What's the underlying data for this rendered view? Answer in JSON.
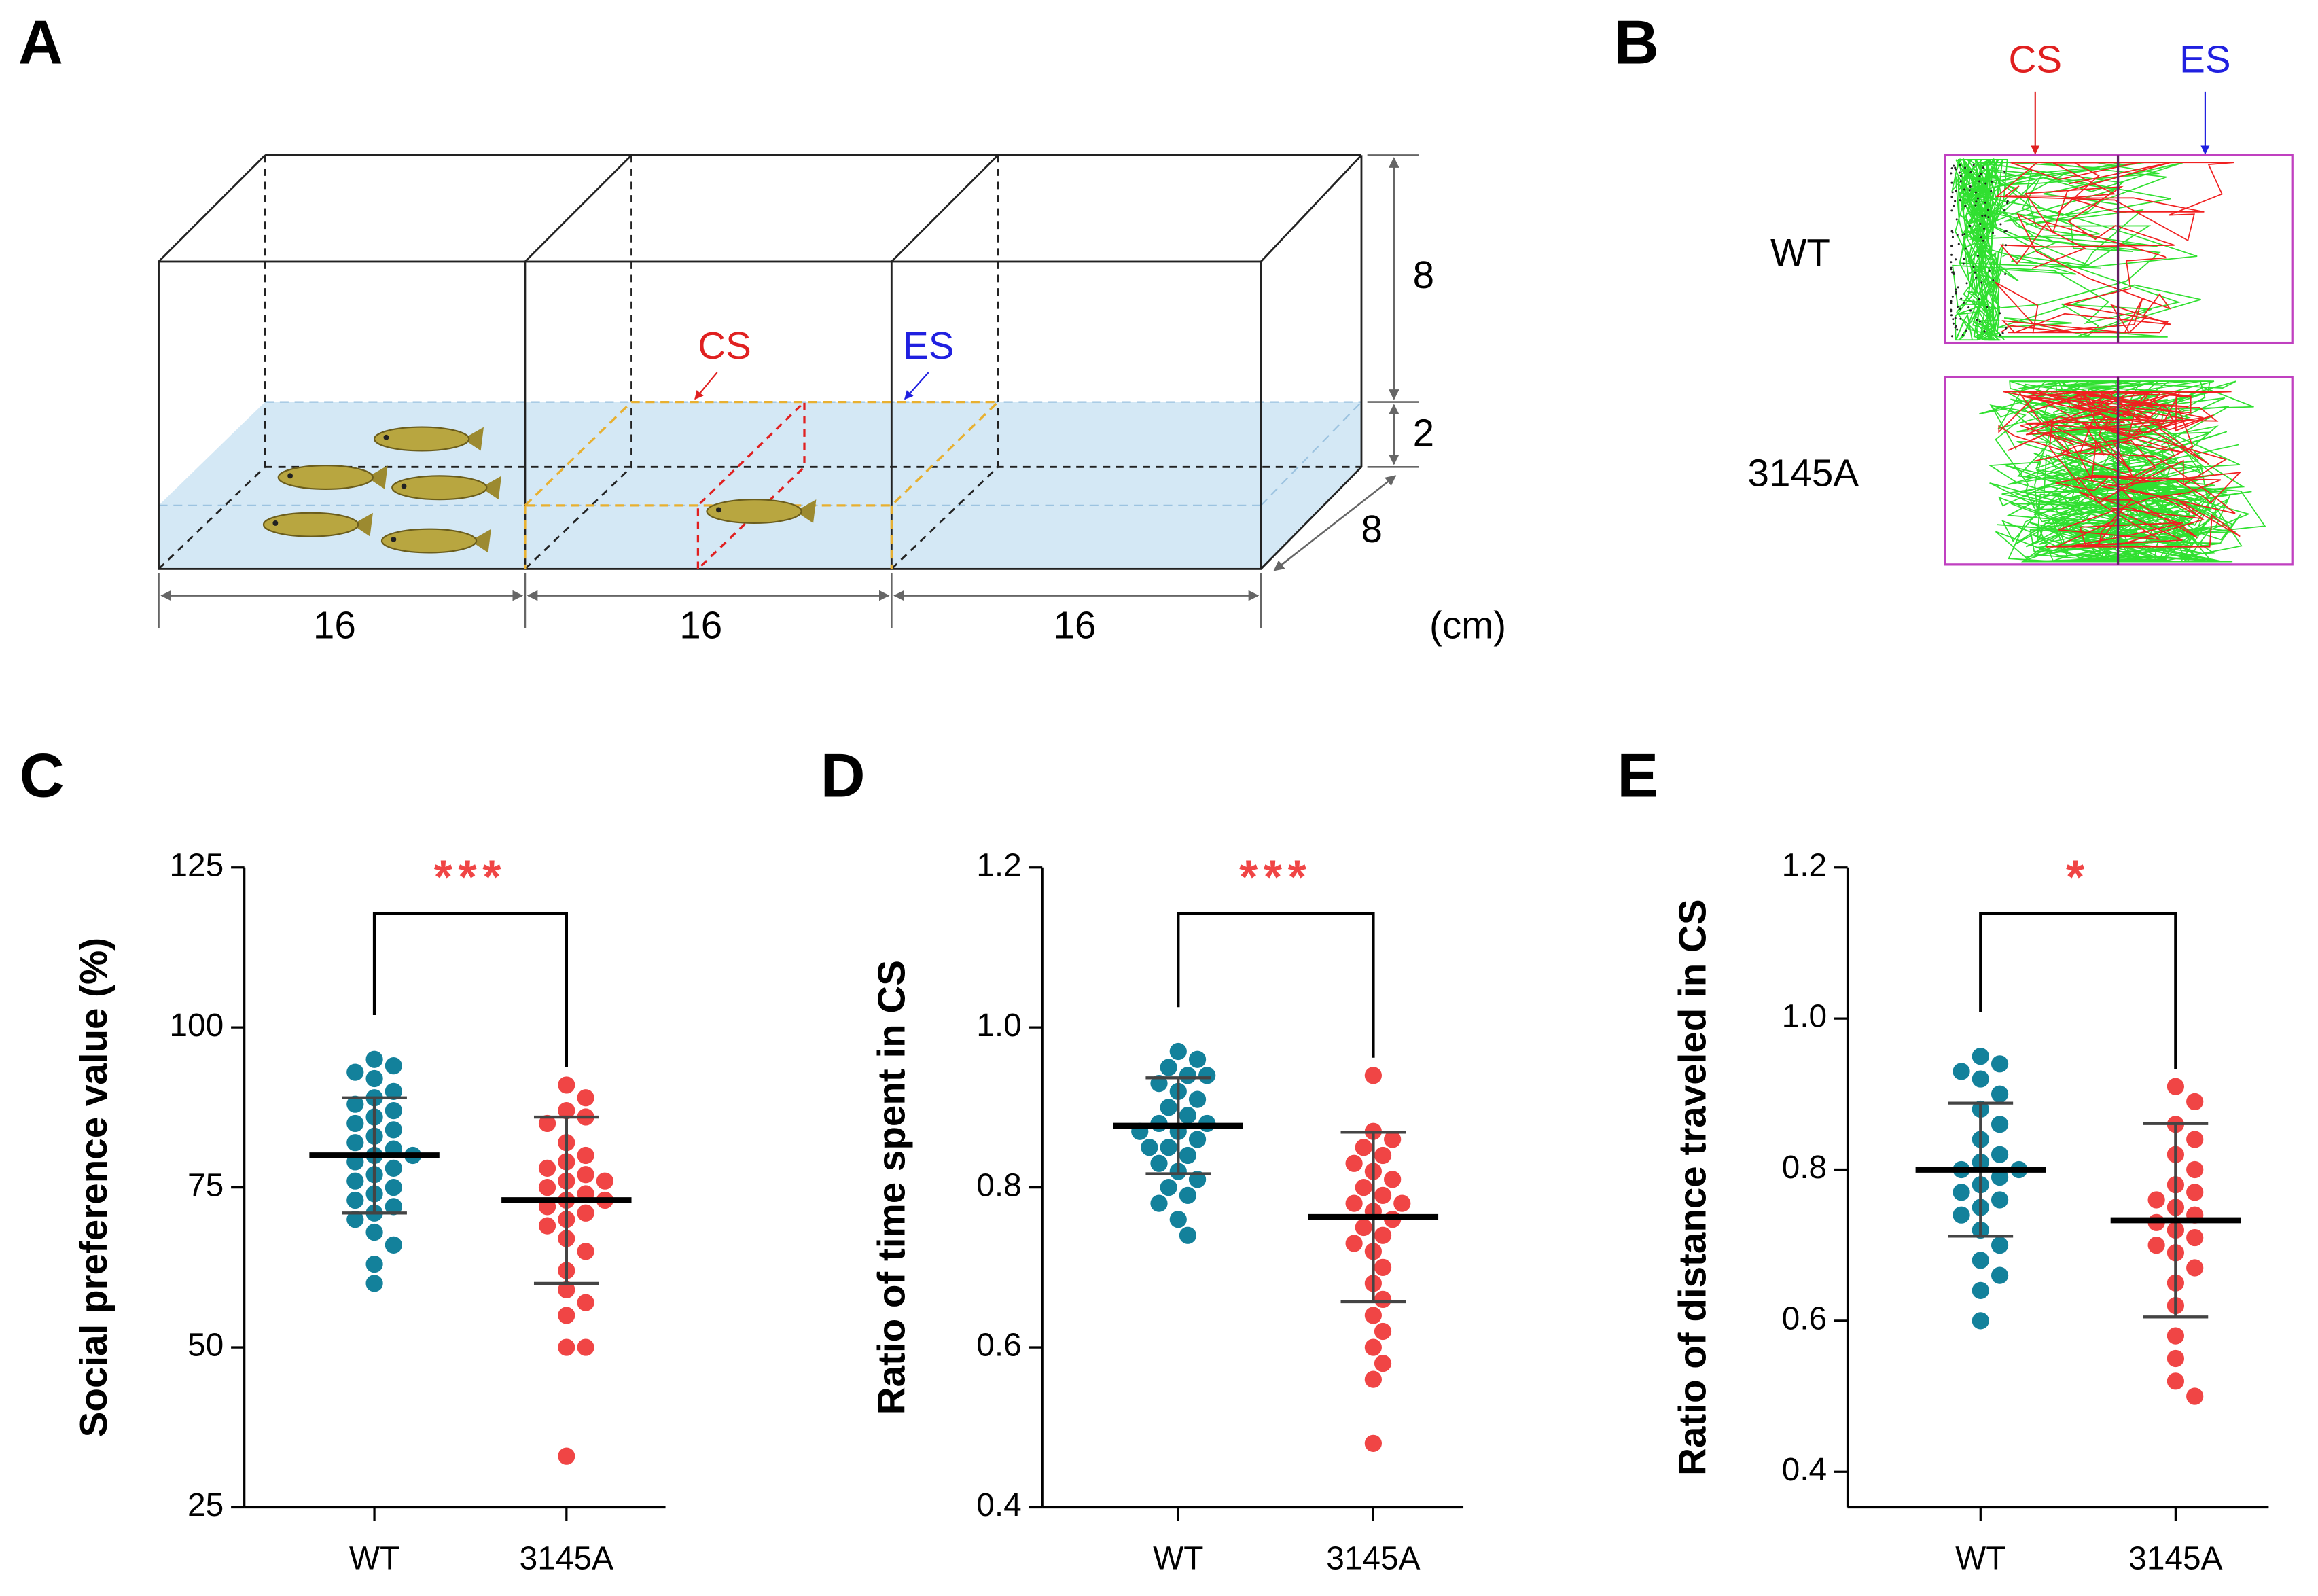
{
  "panel_a": {
    "label": "A",
    "cs": "CS",
    "es": "ES",
    "height": 8,
    "water": 2,
    "depth": 8,
    "widths": [
      16,
      16,
      16
    ],
    "unit": "(cm)"
  },
  "panel_b": {
    "label": "B",
    "cs": "CS",
    "es": "ES",
    "rows": [
      "WT",
      "3145A"
    ]
  },
  "chart_data": [
    {
      "type": "strip",
      "panel": "C",
      "y_label": "Social preference value (%)",
      "categories": [
        "WT",
        "3145A"
      ],
      "ylim": [
        25,
        125
      ],
      "yticks": [
        25,
        50,
        75,
        100,
        125
      ],
      "annotation": "***",
      "series": [
        {
          "color": "#13819b",
          "mean": 80,
          "sd": 9,
          "values": [
            95,
            94,
            93,
            92,
            90,
            89,
            88,
            87,
            86,
            85,
            84,
            83,
            82,
            81,
            80,
            80,
            79,
            78,
            77,
            76,
            75,
            74,
            73,
            72,
            71,
            70,
            68,
            66,
            63,
            60
          ]
        },
        {
          "color": "#f04545",
          "mean": 73,
          "sd": 13,
          "values": [
            91,
            89,
            87,
            86,
            85,
            82,
            80,
            79,
            78,
            77,
            76,
            76,
            75,
            74,
            73,
            73,
            72,
            71,
            70,
            69,
            67,
            65,
            62,
            59,
            57,
            55,
            50,
            50,
            33
          ]
        }
      ]
    },
    {
      "type": "strip",
      "panel": "D",
      "y_label": "Ratio of time spent in CS",
      "categories": [
        "WT",
        "3145A"
      ],
      "ylim": [
        0.4,
        1.2
      ],
      "yticks": [
        0.4,
        0.6,
        0.8,
        {
          "value": 1,
          "label": "1.0"
        },
        1.2
      ],
      "annotation": "***",
      "series": [
        {
          "color": "#13819b",
          "mean": 0.877,
          "sd": 0.06,
          "values": [
            0.97,
            0.96,
            0.95,
            0.94,
            0.94,
            0.93,
            0.92,
            0.91,
            0.9,
            0.89,
            0.88,
            0.88,
            0.87,
            0.87,
            0.86,
            0.85,
            0.85,
            0.84,
            0.83,
            0.82,
            0.81,
            0.8,
            0.79,
            0.78,
            0.76,
            0.74
          ]
        },
        {
          "color": "#f04545",
          "mean": 0.763,
          "sd": 0.106,
          "values": [
            0.94,
            0.87,
            0.86,
            0.85,
            0.84,
            0.83,
            0.82,
            0.81,
            0.8,
            0.79,
            0.78,
            0.78,
            0.77,
            0.76,
            0.75,
            0.74,
            0.73,
            0.72,
            0.7,
            0.68,
            0.66,
            0.64,
            0.62,
            0.6,
            0.58,
            0.56,
            0.48
          ]
        }
      ]
    },
    {
      "type": "strip",
      "panel": "E",
      "y_label": "Ratio of distance traveled in CS",
      "categories": [
        "WT",
        "3145A"
      ],
      "ylim": [
        0.353,
        1.2
      ],
      "yticks": [
        0.4,
        0.6,
        0.8,
        {
          "value": 1,
          "label": "1.0"
        },
        1.2
      ],
      "annotation": "*",
      "series": [
        {
          "color": "#13819b",
          "mean": 0.8,
          "sd": 0.088,
          "values": [
            0.95,
            0.94,
            0.93,
            0.92,
            0.9,
            0.88,
            0.86,
            0.84,
            0.82,
            0.81,
            0.8,
            0.8,
            0.79,
            0.78,
            0.77,
            0.76,
            0.75,
            0.74,
            0.72,
            0.7,
            0.68,
            0.66,
            0.64,
            0.6
          ]
        },
        {
          "color": "#f04545",
          "mean": 0.733,
          "sd": 0.128,
          "values": [
            0.91,
            0.89,
            0.86,
            0.84,
            0.82,
            0.8,
            0.78,
            0.77,
            0.76,
            0.75,
            0.74,
            0.73,
            0.72,
            0.71,
            0.7,
            0.69,
            0.67,
            0.65,
            0.62,
            0.58,
            0.55,
            0.52,
            0.5
          ]
        }
      ]
    }
  ]
}
